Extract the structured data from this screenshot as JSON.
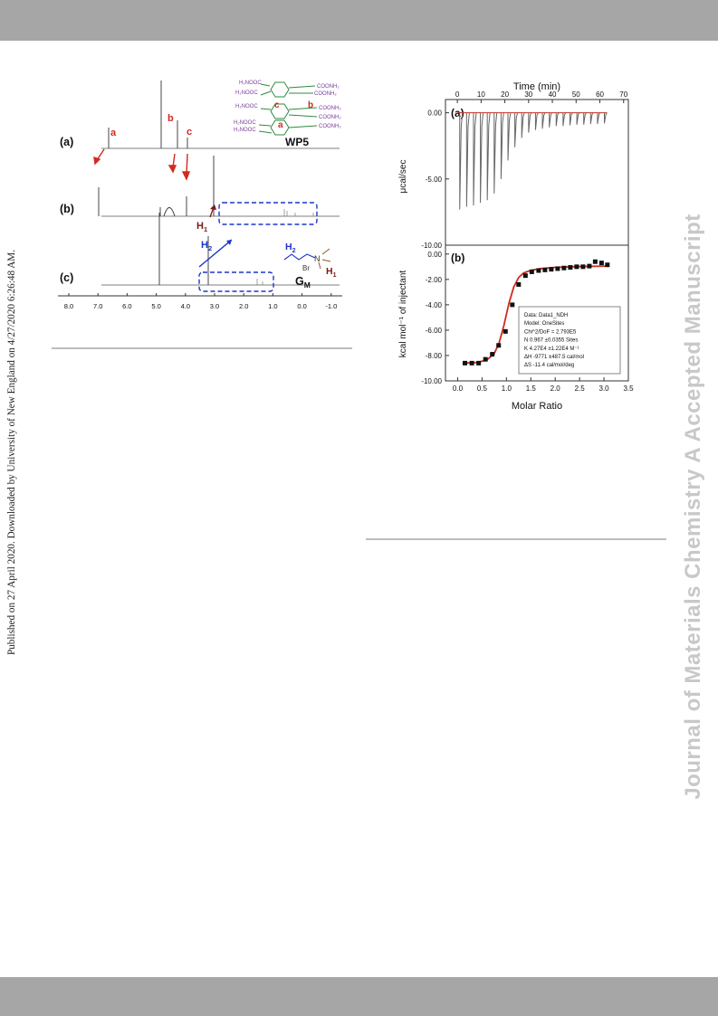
{
  "side_note": "Published on 27 April 2020. Downloaded by University of New England on 4/27/2020 6:26:48 AM.",
  "watermark": "Journal of Materials Chemistry A Accepted Manuscript",
  "nmr_figure": {
    "spectra_labels": [
      "(a)",
      "(b)",
      "(c)"
    ],
    "peak_labels": {
      "a": "a",
      "b": "b",
      "c": "c",
      "h1": "H",
      "h1_sub": "1",
      "h2": "H",
      "h2_sub": "2"
    },
    "host_label": "WP5",
    "guest_label": "G",
    "guest_sub": "M",
    "guest_h1": "H",
    "guest_h1_sub": "1",
    "guest_h2": "H",
    "guest_h2_sub": "2",
    "guest_br": "Br",
    "guest_n": "N",
    "structure_groups": [
      "H₂NOOC",
      "H₂NOOC",
      "H₂NOOC",
      "H₂NOOC",
      "H₂NOOC",
      "COONH₂",
      "COONH₂",
      "COONH₂",
      "COONH₂",
      "COONH₂"
    ],
    "structure_labels": [
      "c",
      "b",
      "a"
    ],
    "x_ticks": [
      "8.0",
      "7.0",
      "6.0",
      "5.0",
      "4.0",
      "3.0",
      "2.0",
      "1.0",
      "0.0",
      "-1.0"
    ]
  },
  "chart_data": [
    {
      "type": "line",
      "panel_label": "(a)",
      "xlabel": "Time (min)",
      "ylabel": "μcal/sec",
      "x_ticks": [
        "0",
        "10",
        "20",
        "30",
        "40",
        "50",
        "60",
        "70"
      ],
      "y_ticks": [
        "0.00",
        "-5.00",
        "-10.00"
      ],
      "xlim": [
        -5,
        72
      ],
      "ylim": [
        -10,
        1
      ],
      "injection_times": [
        1,
        3.9,
        6.8,
        9.7,
        12.6,
        15.5,
        18.4,
        21.3,
        24.2,
        27.1,
        30,
        32.9,
        35.8,
        38.7,
        41.6,
        44.5,
        47.4,
        50.3,
        53.2,
        56.1,
        59,
        61.9
      ],
      "injection_peaks": [
        -7.3,
        -7.1,
        -7.0,
        -6.8,
        -6.6,
        -6.1,
        -5.0,
        -3.6,
        -2.6,
        -1.9,
        -1.5,
        -1.3,
        -1.2,
        -1.1,
        -1.0,
        -1.0,
        -0.95,
        -0.9,
        -0.9,
        -0.85,
        -0.85,
        -0.8
      ],
      "baseline": 0
    },
    {
      "type": "scatter",
      "panel_label": "(b)",
      "xlabel": "Molar Ratio",
      "ylabel": "kcal mol⁻¹ of injectant",
      "x_ticks": [
        "0.0",
        "0.5",
        "1.0",
        "1.5",
        "2.0",
        "2.5",
        "3.0",
        "3.5"
      ],
      "y_ticks": [
        "0.00",
        "-2.00",
        "-4.00",
        "-6.00",
        "-8.00",
        "-10.00"
      ],
      "xlim": [
        -0.25,
        3.5
      ],
      "ylim": [
        -10,
        0.7
      ],
      "series": [
        {
          "points": [
            [
              0.15,
              -8.6
            ],
            [
              0.29,
              -8.6
            ],
            [
              0.43,
              -8.6
            ],
            [
              0.57,
              -8.3
            ],
            [
              0.71,
              -7.9
            ],
            [
              0.84,
              -7.2
            ],
            [
              0.98,
              -6.1
            ],
            [
              1.12,
              -4.0
            ],
            [
              1.25,
              -2.4
            ],
            [
              1.39,
              -1.7
            ],
            [
              1.52,
              -1.4
            ],
            [
              1.66,
              -1.3
            ],
            [
              1.79,
              -1.25
            ],
            [
              1.92,
              -1.2
            ],
            [
              2.05,
              -1.15
            ],
            [
              2.18,
              -1.1
            ],
            [
              2.31,
              -1.05
            ],
            [
              2.44,
              -1.0
            ],
            [
              2.57,
              -1.0
            ],
            [
              2.7,
              -0.95
            ],
            [
              2.82,
              -0.6
            ],
            [
              2.95,
              -0.7
            ],
            [
              3.07,
              -0.85
            ]
          ]
        },
        {
          "fit": [
            [
              0.1,
              -8.6
            ],
            [
              0.4,
              -8.55
            ],
            [
              0.6,
              -8.35
            ],
            [
              0.75,
              -7.85
            ],
            [
              0.85,
              -7.0
            ],
            [
              0.95,
              -5.6
            ],
            [
              1.05,
              -3.9
            ],
            [
              1.15,
              -2.6
            ],
            [
              1.25,
              -1.85
            ],
            [
              1.35,
              -1.5
            ],
            [
              1.5,
              -1.28
            ],
            [
              1.7,
              -1.15
            ],
            [
              2.0,
              -1.05
            ],
            [
              2.5,
              -0.98
            ],
            [
              3.1,
              -0.95
            ]
          ]
        }
      ],
      "fit_box": [
        "Data: Data1_NDH",
        "Model: OneSites",
        "Chi^2/DoF = 2.793E5",
        "N      0.967   ±0.0355 Sites",
        "K      4.27E4 ±1.22E4 M⁻¹",
        "ΔH     -9771   ±487.5 cal/mol",
        "ΔS     -11.4 cal/mol/deg"
      ]
    }
  ],
  "colors": {
    "band": "#a6a6a6",
    "red": "#d12a1f",
    "blue": "#1f35c9",
    "green": "#2e8b3d",
    "purple": "#7a3e9a",
    "darkred": "#7a1a1a"
  }
}
